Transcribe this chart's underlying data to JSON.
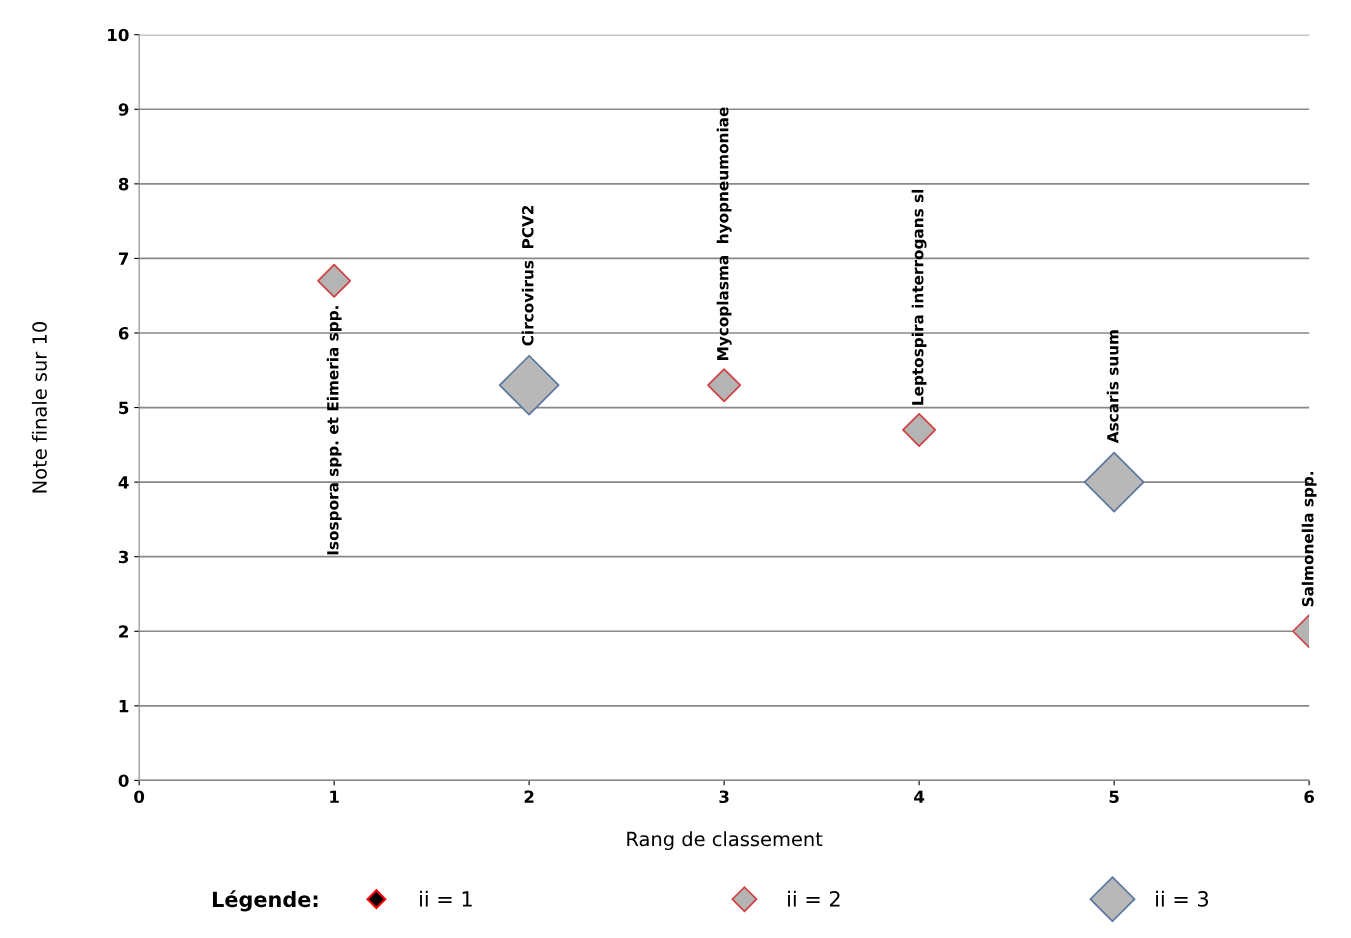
{
  "chart_data": {
    "type": "bubble",
    "xlabel": "Rang de classement",
    "ylabel": "Note finale sur 10",
    "legend_title": "Légende:",
    "legend": "bottom",
    "marker": "diamond",
    "grid": "y",
    "xlim": [
      0,
      6
    ],
    "xticks": [
      0,
      1,
      2,
      3,
      4,
      5,
      6
    ],
    "ylim": [
      0,
      10
    ],
    "yticks": [
      0,
      1,
      2,
      3,
      4,
      5,
      6,
      7,
      8,
      9,
      10
    ],
    "series": [
      {
        "name": "ii = 2",
        "color": "#b4b4b4",
        "x": [
          1,
          3,
          4,
          6
        ],
        "values": [
          6.7,
          5.3,
          4.7,
          2.0
        ],
        "sizes": [
          0.3,
          0.3,
          0.3,
          0.3
        ],
        "value_labels": [
          "Isospora spp. et Eimeria spp.",
          "Mycoplasma  hyopneumoniae",
          "Leptospira interrogans sl",
          "Salmonella spp."
        ]
      },
      {
        "name": "ii = 3",
        "color": "#b8b8b8",
        "x": [
          2,
          5
        ],
        "values": [
          5.3,
          4.0
        ],
        "sizes": [
          1,
          1
        ],
        "value_labels": [
          "Circovirus  PCV2",
          "Ascaris suum"
        ]
      }
    ],
    "annotations": [
      "ii = 1"
    ]
  }
}
